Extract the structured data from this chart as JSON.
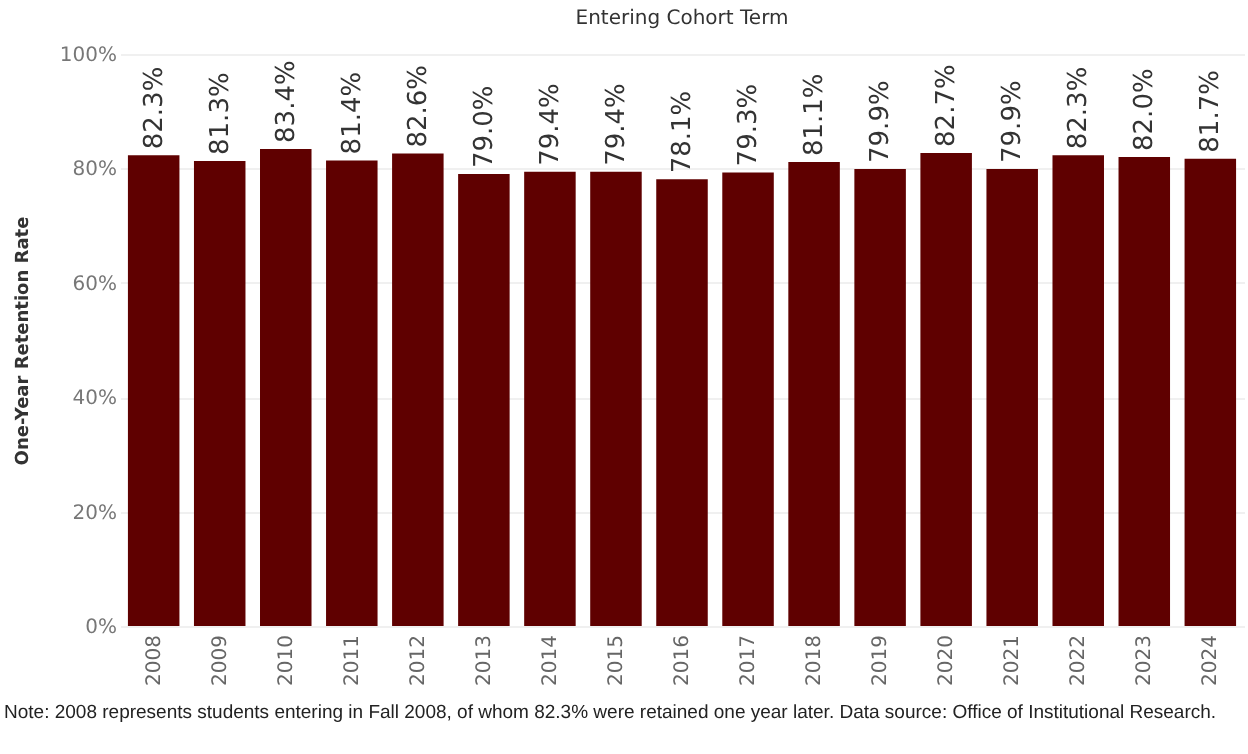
{
  "chart_data": {
    "type": "bar",
    "title": "Entering Cohort Term",
    "ylabel": "One-Year Retention Rate",
    "categories": [
      "2008",
      "2009",
      "2010",
      "2011",
      "2012",
      "2013",
      "2014",
      "2015",
      "2016",
      "2017",
      "2018",
      "2019",
      "2020",
      "2021",
      "2022",
      "2023",
      "2024"
    ],
    "values": [
      82.3,
      81.3,
      83.4,
      81.4,
      82.6,
      79.0,
      79.4,
      79.4,
      78.1,
      79.3,
      81.1,
      79.9,
      82.7,
      79.9,
      82.3,
      82.0,
      81.7
    ],
    "value_labels": [
      "82.3%",
      "81.3%",
      "83.4%",
      "81.4%",
      "82.6%",
      "79.0%",
      "79.4%",
      "79.4%",
      "78.1%",
      "79.3%",
      "81.1%",
      "79.9%",
      "82.7%",
      "79.9%",
      "82.3%",
      "82.0%",
      "81.7%"
    ],
    "color": "#5f0000",
    "ylim": [
      0,
      100
    ],
    "yticks": [
      {
        "value": 0,
        "label": "0%"
      },
      {
        "value": 20,
        "label": "20%"
      },
      {
        "value": 40,
        "label": "40%"
      },
      {
        "value": 60,
        "label": "60%"
      },
      {
        "value": 80,
        "label": "80%"
      },
      {
        "value": 100,
        "label": "100%"
      }
    ],
    "grid": "y",
    "annotations": [
      "Note: 2008 represents students entering in Fall 2008, of whom 82.3% were retained one year later. Data source: Office of Institutional Research."
    ]
  }
}
